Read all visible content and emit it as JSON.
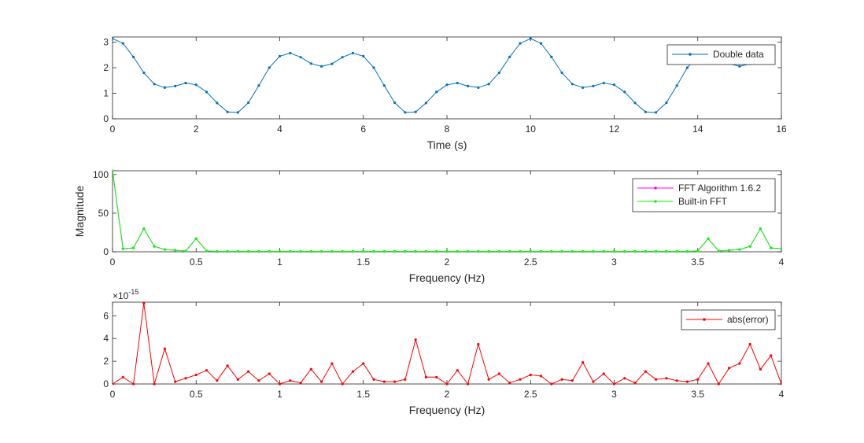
{
  "chart_data": [
    {
      "type": "line",
      "xlabel": "Time (s)",
      "ylabel": "",
      "xlim": [
        0,
        16
      ],
      "ylim": [
        0,
        3.2
      ],
      "xticks": [
        0,
        2,
        4,
        6,
        8,
        10,
        12,
        14,
        16
      ],
      "yticks": [
        0,
        1,
        2,
        3
      ],
      "legend_position": "top-right",
      "grid": false,
      "series": [
        {
          "name": "Double data",
          "color": "#0072BD",
          "marker": "dot",
          "x": [
            0,
            0.25,
            0.5,
            0.75,
            1,
            1.25,
            1.5,
            1.75,
            2,
            2.25,
            2.5,
            2.75,
            3,
            3.25,
            3.5,
            3.75,
            4,
            4.25,
            4.5,
            4.75,
            5,
            5.25,
            5.5,
            5.75,
            6,
            6.25,
            6.5,
            6.75,
            7,
            7.25,
            7.5,
            7.75,
            8,
            8.25,
            8.5,
            8.75,
            9,
            9.25,
            9.5,
            9.75,
            10,
            10.25,
            10.5,
            10.75,
            11,
            11.25,
            11.5,
            11.75,
            12,
            12.25,
            12.5,
            12.75,
            13,
            13.25,
            13.5,
            13.75,
            14,
            14.25,
            14.5,
            14.75,
            15,
            15.25,
            15.5,
            15.75
          ],
          "y": [
            3.14,
            2.95,
            2.42,
            1.8,
            1.36,
            1.22,
            1.28,
            1.4,
            1.33,
            1.05,
            0.62,
            0.27,
            0.25,
            0.63,
            1.3,
            2.0,
            2.45,
            2.57,
            2.41,
            2.16,
            2.05,
            2.15,
            2.41,
            2.57,
            2.45,
            2.0,
            1.3,
            0.63,
            0.25,
            0.27,
            0.62,
            1.05,
            1.33,
            1.4,
            1.28,
            1.22,
            1.36,
            1.8,
            2.42,
            2.95,
            3.14,
            2.95,
            2.42,
            1.8,
            1.36,
            1.22,
            1.28,
            1.4,
            1.33,
            1.05,
            0.62,
            0.27,
            0.25,
            0.63,
            1.3,
            2.0,
            2.45,
            2.57,
            2.41,
            2.16,
            2.05,
            2.15,
            2.41,
            2.57
          ]
        }
      ]
    },
    {
      "type": "line",
      "xlabel": "Frequency (Hz)",
      "ylabel": "Magnitude",
      "xlim": [
        0,
        4
      ],
      "ylim": [
        0,
        105
      ],
      "xticks": [
        0,
        0.5,
        1,
        1.5,
        2,
        2.5,
        3,
        3.5,
        4
      ],
      "yticks": [
        0,
        50,
        100
      ],
      "legend_position": "top-right",
      "grid": false,
      "series": [
        {
          "name": "FFT Algorithm 1.6.2",
          "color": "#FF00FF",
          "marker": "dot",
          "x": [
            0,
            0.0625,
            0.125,
            0.1875,
            0.25,
            0.3125,
            0.375,
            0.4375,
            0.5,
            0.5625,
            0.625,
            0.6875,
            0.75,
            0.8125,
            0.875,
            0.9375,
            1,
            1.0625,
            1.125,
            1.1875,
            1.25,
            1.3125,
            1.375,
            1.4375,
            1.5,
            1.5625,
            1.625,
            1.6875,
            1.75,
            1.8125,
            1.875,
            1.9375,
            2,
            2.0625,
            2.125,
            2.1875,
            2.25,
            2.3125,
            2.375,
            2.4375,
            2.5,
            2.5625,
            2.625,
            2.6875,
            2.75,
            2.8125,
            2.875,
            2.9375,
            3,
            3.0625,
            3.125,
            3.1875,
            3.25,
            3.3125,
            3.375,
            3.4375,
            3.5,
            3.5625,
            3.625,
            3.6875,
            3.75,
            3.8125,
            3.875,
            3.9375,
            4
          ],
          "y": [
            105,
            4,
            5,
            30,
            7,
            3,
            2,
            1,
            17,
            1,
            0.5,
            0.5,
            0.5,
            0.5,
            0.5,
            0.5,
            0.5,
            0.5,
            0.5,
            0.5,
            0.5,
            0.5,
            0.5,
            0.5,
            0.5,
            0.5,
            0.5,
            0.5,
            0.5,
            0.5,
            0.5,
            0.5,
            0.5,
            0.5,
            0.5,
            0.5,
            0.5,
            0.5,
            0.5,
            0.5,
            0.5,
            0.5,
            0.5,
            0.5,
            0.5,
            0.5,
            0.5,
            0.5,
            0.5,
            0.5,
            0.5,
            0.5,
            0.5,
            0.5,
            0.5,
            0.5,
            1,
            17,
            1,
            2,
            3,
            7,
            30,
            5,
            4
          ]
        },
        {
          "name": "Built-in FFT",
          "color": "#00FF00",
          "marker": "dot",
          "x": [
            0,
            0.0625,
            0.125,
            0.1875,
            0.25,
            0.3125,
            0.375,
            0.4375,
            0.5,
            0.5625,
            0.625,
            0.6875,
            0.75,
            0.8125,
            0.875,
            0.9375,
            1,
            1.0625,
            1.125,
            1.1875,
            1.25,
            1.3125,
            1.375,
            1.4375,
            1.5,
            1.5625,
            1.625,
            1.6875,
            1.75,
            1.8125,
            1.875,
            1.9375,
            2,
            2.0625,
            2.125,
            2.1875,
            2.25,
            2.3125,
            2.375,
            2.4375,
            2.5,
            2.5625,
            2.625,
            2.6875,
            2.75,
            2.8125,
            2.875,
            2.9375,
            3,
            3.0625,
            3.125,
            3.1875,
            3.25,
            3.3125,
            3.375,
            3.4375,
            3.5,
            3.5625,
            3.625,
            3.6875,
            3.75,
            3.8125,
            3.875,
            3.9375,
            4
          ],
          "y": [
            105,
            4,
            5,
            30,
            7,
            3,
            2,
            1,
            17,
            1,
            0.5,
            0.5,
            0.5,
            0.5,
            0.5,
            0.5,
            0.5,
            0.5,
            0.5,
            0.5,
            0.5,
            0.5,
            0.5,
            0.5,
            0.5,
            0.5,
            0.5,
            0.5,
            0.5,
            0.5,
            0.5,
            0.5,
            0.5,
            0.5,
            0.5,
            0.5,
            0.5,
            0.5,
            0.5,
            0.5,
            0.5,
            0.5,
            0.5,
            0.5,
            0.5,
            0.5,
            0.5,
            0.5,
            0.5,
            0.5,
            0.5,
            0.5,
            0.5,
            0.5,
            0.5,
            0.5,
            1,
            17,
            1,
            2,
            3,
            7,
            30,
            5,
            4
          ]
        }
      ]
    },
    {
      "type": "line",
      "xlabel": "Frequency (Hz)",
      "ylabel": "",
      "y_exponent": "×10",
      "y_exponent_power": "-15",
      "xlim": [
        0,
        4
      ],
      "ylim": [
        0,
        7.2
      ],
      "xticks": [
        0,
        0.5,
        1,
        1.5,
        2,
        2.5,
        3,
        3.5,
        4
      ],
      "yticks": [
        0,
        2,
        4,
        6
      ],
      "legend_position": "top-right",
      "grid": false,
      "series": [
        {
          "name": "abs(error)",
          "color": "#FF0000",
          "marker": "dot",
          "x": [
            0,
            0.0625,
            0.125,
            0.1875,
            0.25,
            0.3125,
            0.375,
            0.4375,
            0.5,
            0.5625,
            0.625,
            0.6875,
            0.75,
            0.8125,
            0.875,
            0.9375,
            1,
            1.0625,
            1.125,
            1.1875,
            1.25,
            1.3125,
            1.375,
            1.4375,
            1.5,
            1.5625,
            1.625,
            1.6875,
            1.75,
            1.8125,
            1.875,
            1.9375,
            2,
            2.0625,
            2.125,
            2.1875,
            2.25,
            2.3125,
            2.375,
            2.4375,
            2.5,
            2.5625,
            2.625,
            2.6875,
            2.75,
            2.8125,
            2.875,
            2.9375,
            3,
            3.0625,
            3.125,
            3.1875,
            3.25,
            3.3125,
            3.375,
            3.4375,
            3.5,
            3.5625,
            3.625,
            3.6875,
            3.75,
            3.8125,
            3.875,
            3.9375,
            4
          ],
          "y": [
            0,
            0.6,
            0,
            7.1,
            0,
            3.1,
            0.2,
            0.5,
            0.8,
            1.2,
            0.3,
            1.6,
            0.4,
            1.1,
            0.3,
            0.9,
            0,
            0.3,
            0.1,
            1.3,
            0.2,
            1.8,
            0,
            1.1,
            1.8,
            0.4,
            0.2,
            0.2,
            0.4,
            3.9,
            0.6,
            0.6,
            0,
            1.2,
            0,
            3.5,
            0.4,
            0.9,
            0.1,
            0.4,
            0.8,
            0.7,
            0,
            0.4,
            0.3,
            1.9,
            0.2,
            0.9,
            0,
            0.5,
            0.1,
            1.1,
            0.4,
            0.5,
            0.3,
            0.2,
            0.4,
            1.8,
            0,
            1.4,
            1.8,
            3.5,
            1.3,
            2.5,
            0
          ]
        }
      ]
    }
  ]
}
